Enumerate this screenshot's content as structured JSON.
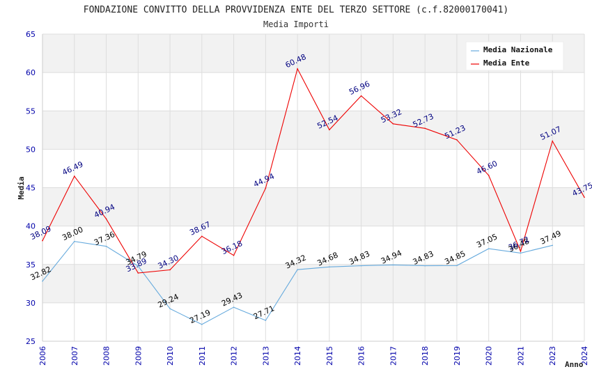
{
  "chart_data": {
    "type": "line",
    "title": "FONDAZIONE CONVITTO DELLA PROVVIDENZA ENTE DEL TERZO SETTORE (c.f.82000170041)",
    "subtitle": "Media Importi",
    "xlabel": "Anno",
    "ylabel": "Media",
    "ylim": [
      25,
      65
    ],
    "yticks": [
      "25",
      "30",
      "35",
      "40",
      "45",
      "50",
      "55",
      "60",
      "65"
    ],
    "categories": [
      "2006",
      "2007",
      "2008",
      "2009",
      "2010",
      "2011",
      "2012",
      "2013",
      "2014",
      "2015",
      "2016",
      "2017",
      "2018",
      "2019",
      "2020",
      "2021",
      "2023",
      "2024"
    ],
    "legend_position": "top-right",
    "grid": true,
    "series": [
      {
        "name": "Media Nazionale",
        "color": "#66aadd",
        "label_color": "#000000",
        "values": [
          32.82,
          38.0,
          37.36,
          34.79,
          29.24,
          27.19,
          29.43,
          27.71,
          34.32,
          34.68,
          34.83,
          34.94,
          34.83,
          34.85,
          37.05,
          36.48,
          37.49,
          null
        ],
        "labels": [
          "32.82",
          "38.00",
          "37.36",
          "34.79",
          "29.24",
          "27.19",
          "29.43",
          "27.71",
          "34.32",
          "34.68",
          "34.83",
          "34.94",
          "34.83",
          "34.85",
          "37.05",
          "36.48",
          "37.49",
          ""
        ]
      },
      {
        "name": "Media Ente",
        "color": "#ee0000",
        "label_color": "#000080",
        "values": [
          38.09,
          46.49,
          40.94,
          33.89,
          34.3,
          38.67,
          36.18,
          44.94,
          60.48,
          52.54,
          56.96,
          53.32,
          52.73,
          51.23,
          46.6,
          36.72,
          51.07,
          43.75
        ],
        "labels": [
          "38.09",
          "46.49",
          "40.94",
          "33.89",
          "34.30",
          "38.67",
          "36.18",
          "44.94",
          "60.48",
          "52.54",
          "56.96",
          "53.32",
          "52.73",
          "51.23",
          "46.60",
          "36.72",
          "51.07",
          "43.75"
        ]
      }
    ]
  },
  "colors": {
    "band_shaded": "#f2f2f2",
    "band_plain": "#ffffff",
    "grid": "#dddddd",
    "tick_text": "#0000aa"
  }
}
